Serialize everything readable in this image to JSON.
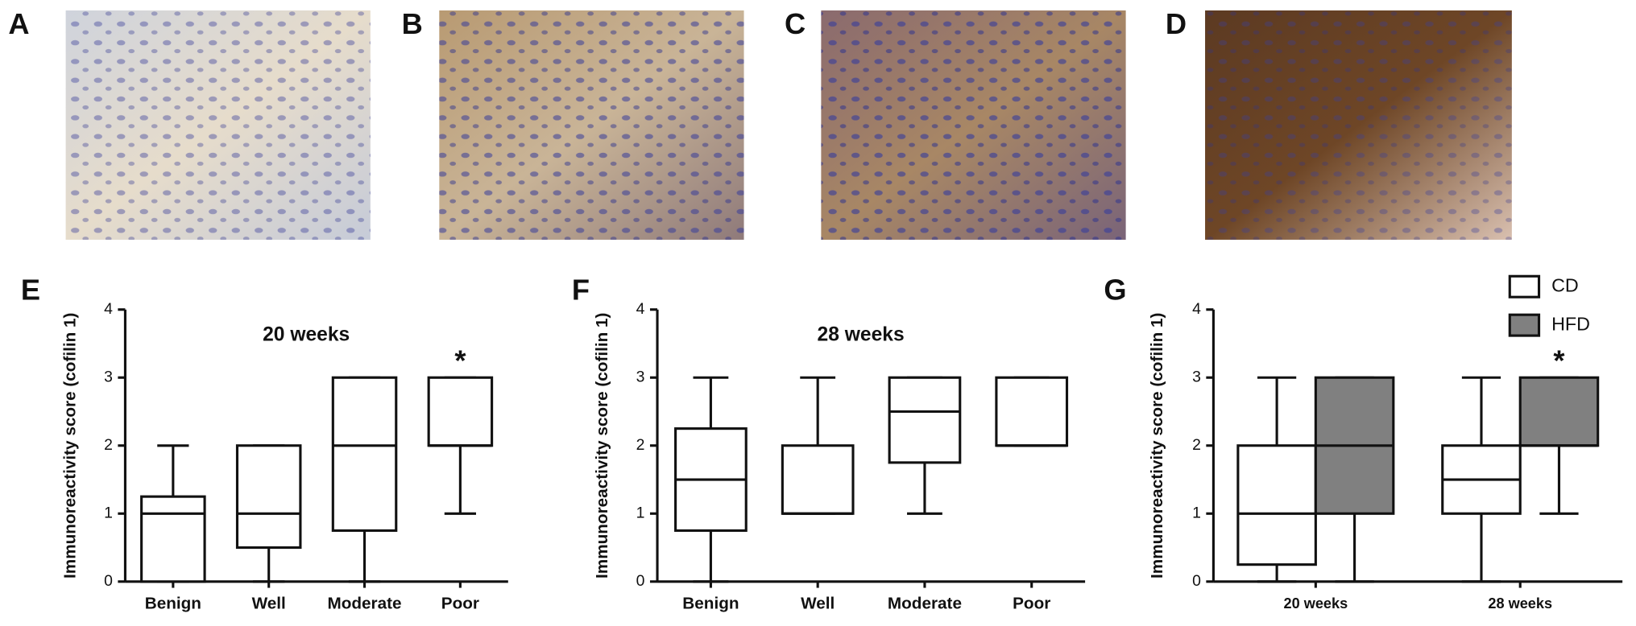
{
  "panel_labels": [
    "A",
    "B",
    "C",
    "D"
  ],
  "chart_data": [
    {
      "type": "box",
      "panel_label": "E",
      "title": "20 weeks",
      "y_label": "Immunoreactivity score (cofilin 1)",
      "ylim": [
        0,
        4
      ],
      "yticks": [
        0,
        1,
        2,
        3,
        4
      ],
      "categories": [
        "Benign",
        "Well",
        "Moderate",
        "Poor"
      ],
      "series": [
        {
          "color": "#ffffff",
          "min": [
            0,
            0,
            0,
            1
          ],
          "q1": [
            0,
            0.5,
            0.75,
            2
          ],
          "median": [
            1,
            1,
            2,
            2
          ],
          "q3": [
            1.25,
            2,
            3,
            3
          ],
          "max": [
            2,
            2,
            3,
            3
          ]
        }
      ],
      "annotations": [
        {
          "text": "*",
          "category": "Poor"
        }
      ]
    },
    {
      "type": "box",
      "panel_label": "F",
      "title": "28 weeks",
      "y_label": "Immunoreactivity score (cofilin 1)",
      "ylim": [
        0,
        4
      ],
      "yticks": [
        0,
        1,
        2,
        3,
        4
      ],
      "categories": [
        "Benign",
        "Well",
        "Moderate",
        "Poor"
      ],
      "series": [
        {
          "color": "#ffffff",
          "min": [
            0,
            1,
            1,
            2
          ],
          "q1": [
            0.75,
            1,
            1.75,
            2
          ],
          "median": [
            1.5,
            1,
            2.5,
            2
          ],
          "q3": [
            2.25,
            2,
            3,
            3
          ],
          "max": [
            3,
            3,
            3,
            3
          ]
        }
      ]
    },
    {
      "type": "box",
      "panel_label": "G",
      "y_label": "Immunoreactivity score (cofilin 1)",
      "ylim": [
        0,
        4
      ],
      "yticks": [
        0,
        1,
        2,
        3,
        4
      ],
      "categories": [
        "20 weeks",
        "28 weeks"
      ],
      "series": [
        {
          "name": "CD",
          "color": "#ffffff",
          "min": [
            0,
            0
          ],
          "q1": [
            0.25,
            1
          ],
          "median": [
            1,
            1.5
          ],
          "q3": [
            2,
            2
          ],
          "max": [
            3,
            3
          ]
        },
        {
          "name": "HFD",
          "color": "#808080",
          "min": [
            0,
            1
          ],
          "q1": [
            1,
            2
          ],
          "median": [
            2,
            2
          ],
          "q3": [
            3,
            3
          ],
          "max": [
            3,
            3
          ]
        }
      ],
      "annotations": [
        {
          "text": "*",
          "category": "28 weeks",
          "series": "HFD"
        }
      ]
    }
  ]
}
